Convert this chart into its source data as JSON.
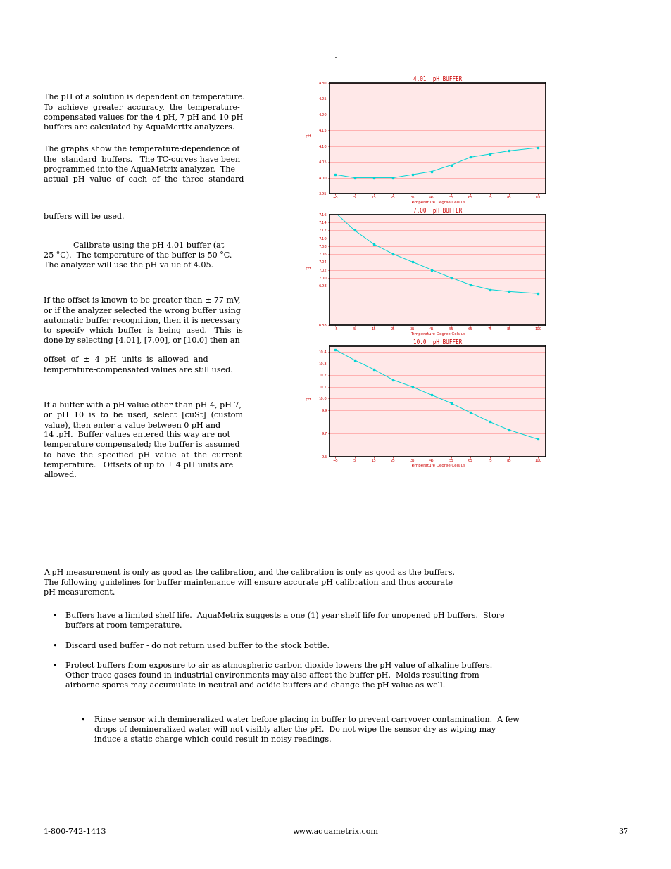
{
  "page_number": "37",
  "footer_left": "1-800-742-1413",
  "footer_center": "www.aquametrix.com",
  "dot": ".",
  "graph1_title": "4.01  pH BUFFER",
  "graph1_xlabel": "Temperature Degree Celsius",
  "graph1_ylabel": "pH",
  "graph1_ylim": [
    3.95,
    4.3
  ],
  "graph1_yticks": [
    3.95,
    4.0,
    4.05,
    4.1,
    4.15,
    4.2,
    4.25,
    4.3
  ],
  "graph1_xticks": [
    -5,
    5,
    15,
    25,
    35,
    45,
    55,
    65,
    75,
    85,
    100
  ],
  "graph1_x": [
    -5,
    5,
    15,
    25,
    35,
    45,
    55,
    65,
    75,
    85,
    100
  ],
  "graph1_y": [
    4.01,
    4.0,
    4.0,
    4.0,
    4.01,
    4.02,
    4.04,
    4.065,
    4.075,
    4.085,
    4.095
  ],
  "graph2_title": "7.00  pH BUFFER",
  "graph2_xlabel": "Temperature Degree Celsius",
  "graph2_ylabel": "pH",
  "graph2_ylim": [
    6.88,
    7.16
  ],
  "graph2_yticks": [
    6.88,
    6.98,
    7.0,
    7.02,
    7.04,
    7.06,
    7.08,
    7.1,
    7.12,
    7.14,
    7.16
  ],
  "graph2_xticks": [
    -5,
    5,
    15,
    25,
    35,
    45,
    55,
    65,
    75,
    85,
    100
  ],
  "graph2_x": [
    -5,
    5,
    15,
    25,
    35,
    45,
    55,
    65,
    75,
    85,
    100
  ],
  "graph2_y": [
    7.165,
    7.12,
    7.085,
    7.06,
    7.04,
    7.02,
    7.0,
    6.982,
    6.97,
    6.965,
    6.96
  ],
  "graph3_title": "10.0  pH BUFFER",
  "graph3_xlabel": "Temperature Degree Celsius",
  "graph3_ylabel": "pH",
  "graph3_ylim": [
    9.5,
    10.45
  ],
  "graph3_yticks": [
    9.5,
    9.7,
    9.9,
    10.0,
    10.1,
    10.2,
    10.3,
    10.4
  ],
  "graph3_xticks": [
    -5,
    5,
    15,
    25,
    35,
    45,
    55,
    65,
    75,
    85,
    100
  ],
  "graph3_x": [
    -5,
    5,
    15,
    25,
    35,
    45,
    55,
    65,
    75,
    85,
    100
  ],
  "graph3_y": [
    10.42,
    10.33,
    10.25,
    10.16,
    10.1,
    10.03,
    9.96,
    9.88,
    9.8,
    9.73,
    9.65
  ],
  "graph_bg": "#ffe8e8",
  "graph_line_color": "#00d4d4",
  "graph_border_color": "#000000",
  "graph_title_color": "#cc0000",
  "graph_grid_color": "#ff9999",
  "graph_tick_color": "#cc0000",
  "text_color": "#000000",
  "bg_color": "#ffffff",
  "font_size": 8.0,
  "font_size_small": 7.2
}
